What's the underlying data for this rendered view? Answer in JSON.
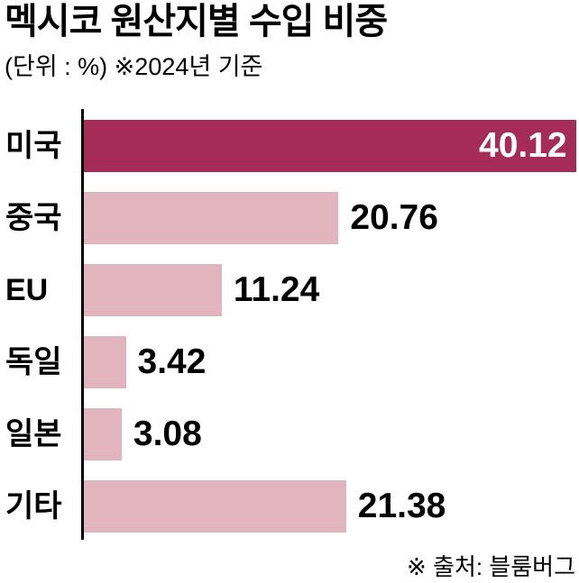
{
  "header": {
    "title": "멕시코 원산지별 수입 비중",
    "subtitle": "(단위 : %) ※2024년 기준"
  },
  "footer": {
    "source": "※ 출처: 블룸버그"
  },
  "chart_data": {
    "type": "bar",
    "orientation": "horizontal",
    "title": "멕시코 원산지별 수입 비중",
    "unit": "%",
    "as_of": "2024년 기준",
    "categories": [
      "미국",
      "중국",
      "EU",
      "독일",
      "일본",
      "기타"
    ],
    "values": [
      40.12,
      20.76,
      11.24,
      3.42,
      3.08,
      21.38
    ],
    "value_labels": [
      "40.12",
      "20.76",
      "11.24",
      "3.42",
      "3.08",
      "21.38"
    ],
    "xlim": [
      0,
      40.12
    ],
    "grid": false,
    "legend": false,
    "highlight_category": "미국",
    "highlight_index": 0,
    "colors": {
      "highlight_bar": "#a62c58",
      "bar": "#e2b4be",
      "highlight_value_text": "#ffffff",
      "value_text": "#000000",
      "label_text": "#000000",
      "axis": "#000000",
      "background": "#ffffff"
    }
  }
}
